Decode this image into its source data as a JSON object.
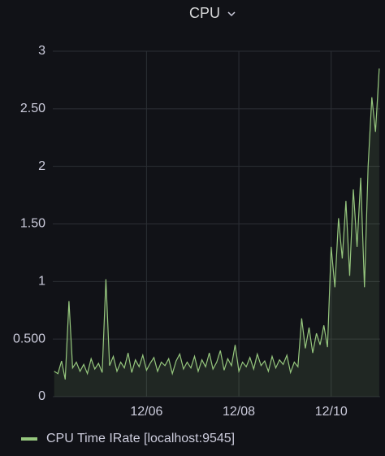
{
  "chart_data": {
    "type": "line",
    "title": "CPU",
    "x": [
      4.0,
      4.08,
      4.16,
      4.24,
      4.32,
      4.4,
      4.48,
      4.56,
      4.64,
      4.72,
      4.8,
      4.88,
      4.96,
      5.04,
      5.12,
      5.2,
      5.28,
      5.36,
      5.44,
      5.52,
      5.6,
      5.68,
      5.76,
      5.84,
      5.92,
      6.0,
      6.08,
      6.16,
      6.24,
      6.32,
      6.4,
      6.48,
      6.56,
      6.64,
      6.72,
      6.8,
      6.88,
      6.96,
      7.04,
      7.12,
      7.2,
      7.28,
      7.36,
      7.44,
      7.52,
      7.6,
      7.68,
      7.76,
      7.84,
      7.92,
      8.0,
      8.08,
      8.16,
      8.24,
      8.32,
      8.4,
      8.48,
      8.56,
      8.64,
      8.72,
      8.8,
      8.88,
      8.96,
      9.04,
      9.12,
      9.2,
      9.28,
      9.36,
      9.44,
      9.52,
      9.6,
      9.68,
      9.76,
      9.84,
      9.92,
      10.0,
      10.08,
      10.16,
      10.24,
      10.32,
      10.4,
      10.48,
      10.56,
      10.64,
      10.72,
      10.8,
      10.88,
      10.96,
      11.04
    ],
    "series": [
      {
        "name": "CPU Time IRate [localhost:9545]",
        "color": "#96c77e",
        "values": [
          0.22,
          0.2,
          0.31,
          0.15,
          0.83,
          0.25,
          0.3,
          0.22,
          0.28,
          0.2,
          0.33,
          0.24,
          0.29,
          0.21,
          1.02,
          0.27,
          0.35,
          0.22,
          0.3,
          0.25,
          0.38,
          0.21,
          0.32,
          0.26,
          0.36,
          0.23,
          0.29,
          0.34,
          0.22,
          0.3,
          0.27,
          0.33,
          0.2,
          0.31,
          0.37,
          0.24,
          0.3,
          0.25,
          0.35,
          0.22,
          0.32,
          0.26,
          0.38,
          0.24,
          0.3,
          0.4,
          0.23,
          0.33,
          0.27,
          0.45,
          0.22,
          0.3,
          0.26,
          0.34,
          0.24,
          0.37,
          0.27,
          0.31,
          0.22,
          0.35,
          0.25,
          0.32,
          0.28,
          0.36,
          0.21,
          0.3,
          0.26,
          0.68,
          0.42,
          0.6,
          0.38,
          0.55,
          0.45,
          0.62,
          0.43,
          1.3,
          0.95,
          1.55,
          1.2,
          1.7,
          1.05,
          1.8,
          1.3,
          1.9,
          0.95,
          2.0,
          2.6,
          2.3,
          2.85
        ]
      }
    ],
    "xlim": [
      3.97,
      11.06
    ],
    "xticks": [
      {
        "value": 6,
        "label": "12/06"
      },
      {
        "value": 8,
        "label": "12/08"
      },
      {
        "value": 10,
        "label": "12/10"
      }
    ],
    "ylim": [
      0,
      3
    ],
    "yticks": [
      0,
      {
        "value": 0.5,
        "label": "0.500"
      },
      1,
      {
        "value": 1.5,
        "label": "1.50"
      },
      2,
      {
        "value": 2.5,
        "label": "2.50"
      },
      3
    ],
    "grid": true,
    "legend": "bottom"
  }
}
